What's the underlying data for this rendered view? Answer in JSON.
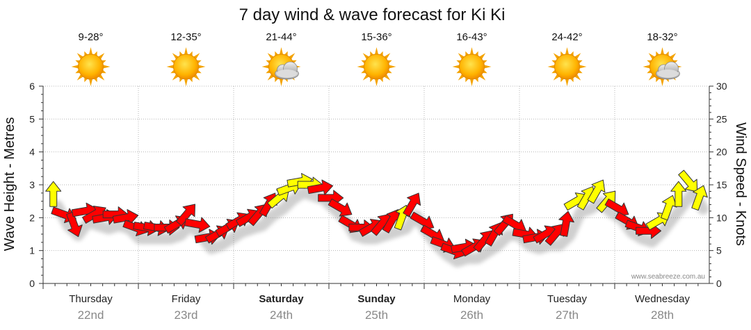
{
  "chart_data": {
    "type": "line",
    "title": "7 day wind & wave forecast for Ki Ki",
    "ylabel_left": "Wave Height - Metres",
    "ylabel_right": "Wind Speed - Knots",
    "ylim_left": [
      0,
      6
    ],
    "ylim_right": [
      0,
      30
    ],
    "yticks_left": [
      "0",
      "1",
      "2",
      "3",
      "4",
      "5",
      "6"
    ],
    "yticks_right": [
      "0",
      "5",
      "10",
      "15",
      "20",
      "25",
      "30"
    ],
    "credit": "www.seabreeze.com.au",
    "days": [
      {
        "name": "Thursday",
        "date": "22nd",
        "temp": "9-28°",
        "icon": "sun-icon",
        "bold": false
      },
      {
        "name": "Friday",
        "date": "23rd",
        "temp": "12-35°",
        "icon": "sun-icon",
        "bold": false
      },
      {
        "name": "Saturday",
        "date": "24th",
        "temp": "21-44°",
        "icon": "sun-cloud-icon",
        "bold": true
      },
      {
        "name": "Sunday",
        "date": "25th",
        "temp": "15-36°",
        "icon": "sun-icon",
        "bold": true
      },
      {
        "name": "Monday",
        "date": "26th",
        "temp": "16-43°",
        "icon": "sun-icon",
        "bold": false
      },
      {
        "name": "Tuesday",
        "date": "27th",
        "temp": "24-42°",
        "icon": "sun-icon",
        "bold": false
      },
      {
        "name": "Wednesday",
        "date": "28th",
        "temp": "18-32°",
        "icon": "sun-cloud-icon",
        "bold": false
      }
    ],
    "series": [
      {
        "name": "Wind Speed",
        "unit": "knots",
        "interval_hours": 3,
        "values": [
          13.5,
          10.5,
          9,
          11,
          10.5,
          10,
          10.5,
          10,
          8.5,
          8.5,
          8.5,
          8.5,
          9,
          10.5,
          9,
          7,
          7.5,
          8.5,
          9.5,
          10,
          10.5,
          12,
          13,
          14.5,
          15.5,
          15,
          14.5,
          13,
          11.5,
          9,
          8.5,
          8.5,
          9,
          9.5,
          10,
          12,
          9.5,
          7.5,
          6,
          5,
          5.5,
          5.5,
          6.5,
          7.5,
          9,
          9,
          7.5,
          7,
          7.5,
          7.5,
          9,
          12.5,
          13,
          14,
          12.5,
          11.5,
          9.5,
          8.5,
          8,
          9.5,
          11.5,
          13.5,
          15.5,
          13
        ],
        "direction_deg": [
          0,
          110,
          160,
          80,
          60,
          80,
          90,
          80,
          110,
          100,
          100,
          90,
          60,
          40,
          100,
          80,
          60,
          60,
          60,
          60,
          40,
          30,
          50,
          70,
          80,
          90,
          80,
          90,
          120,
          120,
          90,
          60,
          40,
          30,
          20,
          30,
          120,
          120,
          110,
          110,
          80,
          60,
          40,
          30,
          40,
          120,
          100,
          80,
          60,
          40,
          10,
          60,
          30,
          30,
          40,
          120,
          120,
          110,
          90,
          60,
          20,
          0,
          140,
          20
        ]
      },
      {
        "name": "Wind Alert Level",
        "unit": "level",
        "values": [
          "y",
          "r",
          "r",
          "r",
          "r",
          "r",
          "r",
          "r",
          "r",
          "r",
          "r",
          "r",
          "r",
          "r",
          "r",
          "r",
          "r",
          "r",
          "r",
          "r",
          "r",
          "r",
          "y",
          "y",
          "y",
          "y",
          "r",
          "r",
          "r",
          "r",
          "r",
          "r",
          "r",
          "r",
          "y",
          "r",
          "r",
          "r",
          "r",
          "r",
          "r",
          "r",
          "r",
          "r",
          "r",
          "r",
          "r",
          "r",
          "r",
          "r",
          "r",
          "y",
          "y",
          "y",
          "y",
          "r",
          "r",
          "r",
          "r",
          "y",
          "y",
          "y",
          "y",
          "y"
        ]
      }
    ],
    "colors": {
      "strong_wind": "#ffff00",
      "light_wind": "#ff0000",
      "outline": "#333333"
    },
    "grid": true,
    "grid_style": "dotted",
    "legend": "none"
  }
}
